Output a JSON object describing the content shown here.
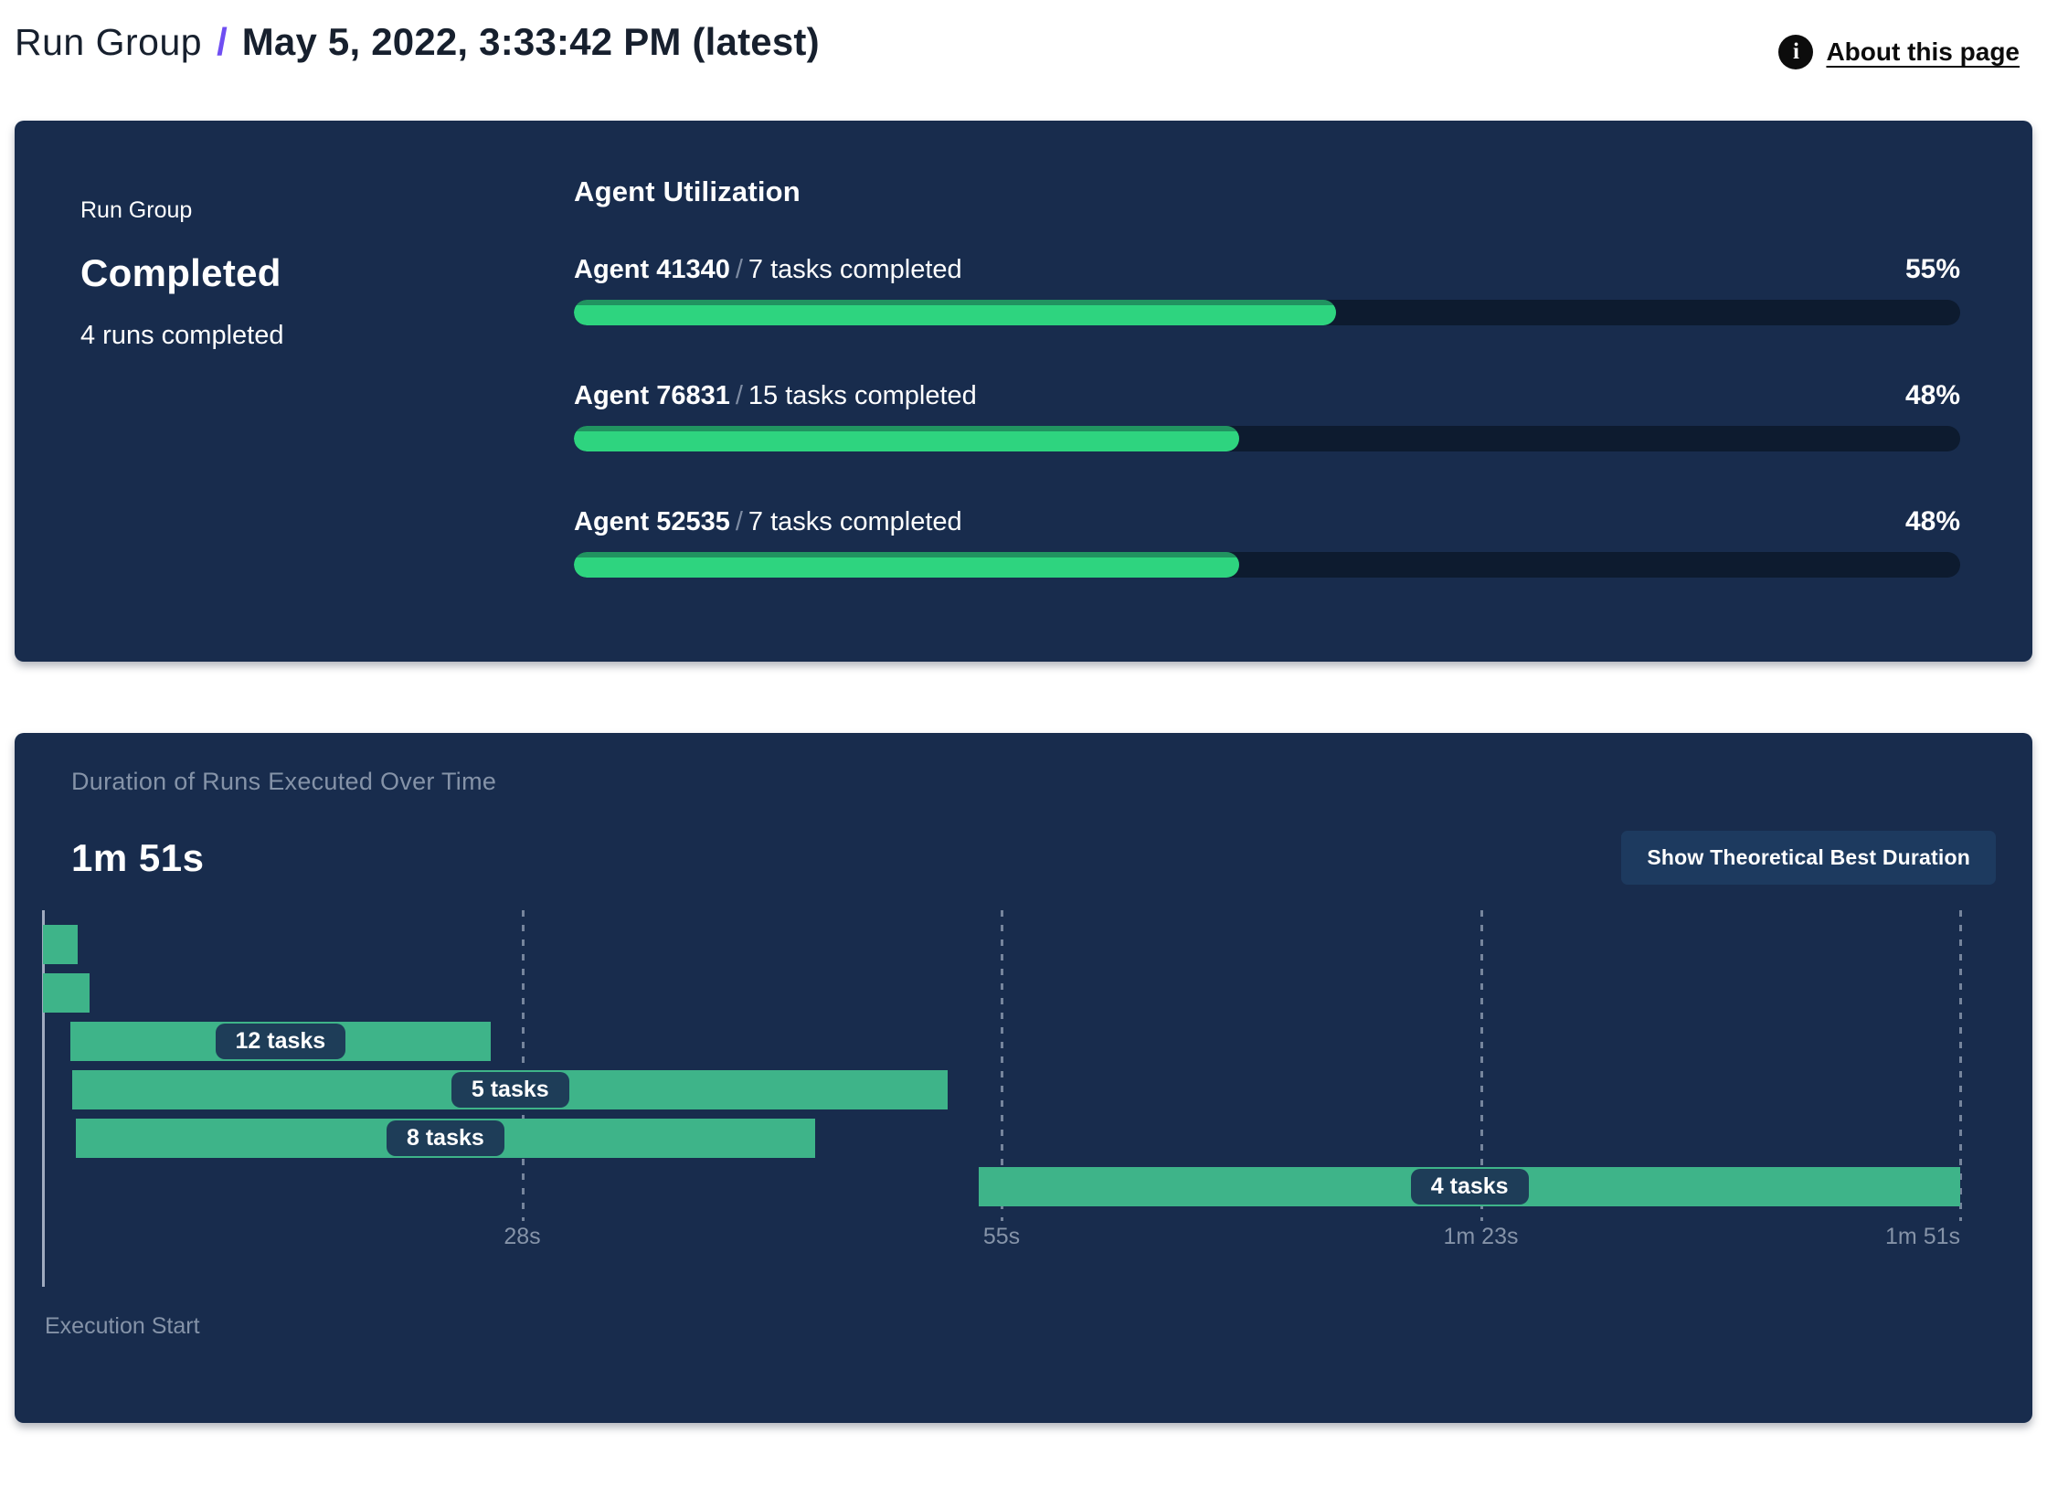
{
  "header": {
    "breadcrumb": "Run Group",
    "separator": "/",
    "title": "May 5, 2022, 3:33:42 PM (latest)",
    "about_label": "About this page",
    "info_icon_glyph": "i"
  },
  "status_panel": {
    "group_label": "Run Group",
    "status": "Completed",
    "runs_summary": "4 runs completed",
    "utilization_title": "Agent Utilization",
    "name_task_separator": "/",
    "agents": [
      {
        "name": "Agent 41340",
        "tasks": "7 tasks completed",
        "percent": 55,
        "percent_label": "55%"
      },
      {
        "name": "Agent 76831",
        "tasks": "15 tasks completed",
        "percent": 48,
        "percent_label": "48%"
      },
      {
        "name": "Agent 52535",
        "tasks": "7 tasks completed",
        "percent": 48,
        "percent_label": "48%"
      }
    ]
  },
  "duration_panel": {
    "title": "Duration of Runs Executed Over Time",
    "total_duration": "1m 51s",
    "button_label": "Show Theoretical Best Duration",
    "execution_start_label": "Execution Start"
  },
  "chart_data": [
    {
      "type": "bar",
      "title": "Agent Utilization",
      "categories": [
        "Agent 41340",
        "Agent 76831",
        "Agent 52535"
      ],
      "values": [
        55,
        48,
        48
      ],
      "unit": "%",
      "xlim": [
        0,
        100
      ],
      "annotations": [
        "7 tasks completed",
        "15 tasks completed",
        "7 tasks completed"
      ]
    },
    {
      "type": "gantt",
      "title": "Duration of Runs Executed Over Time",
      "total_duration_label": "1m 51s",
      "total_seconds": 111,
      "xlabel": "Execution Start",
      "ticks": [
        {
          "label": "28s",
          "seconds": 27.75,
          "pct": 25,
          "align": "center"
        },
        {
          "label": "55s",
          "seconds": 55.5,
          "pct": 50,
          "align": "center"
        },
        {
          "label": "1m 23s",
          "seconds": 83.25,
          "pct": 75,
          "align": "center"
        },
        {
          "label": "1m 51s",
          "seconds": 111,
          "pct": 100,
          "align": "right"
        }
      ],
      "bars": [
        {
          "label": "",
          "start_s": 0,
          "end_s": 2.0
        },
        {
          "label": "",
          "start_s": 0,
          "end_s": 2.7
        },
        {
          "label": "12 tasks",
          "start_s": 1.6,
          "end_s": 25.9
        },
        {
          "label": "5 tasks",
          "start_s": 1.7,
          "end_s": 52.4
        },
        {
          "label": "8 tasks",
          "start_s": 1.9,
          "end_s": 44.7
        },
        {
          "label": "4 tasks",
          "start_s": 54.2,
          "end_s": 111
        }
      ]
    }
  ],
  "colors": {
    "page_bg": "#ffffff",
    "panel_bg": "#182c4d",
    "progress_track": "#0d1b2f",
    "progress_fill": "#2ed47f",
    "progress_fill_edge": "#219360",
    "gantt_bar": "#3eb489",
    "chip_bg": "#1e3d58",
    "muted_text": "#8593a8",
    "accent_separator": "#6f4ef2",
    "button_bg": "#1d3a5f",
    "axis_line": "#9fabbf"
  }
}
